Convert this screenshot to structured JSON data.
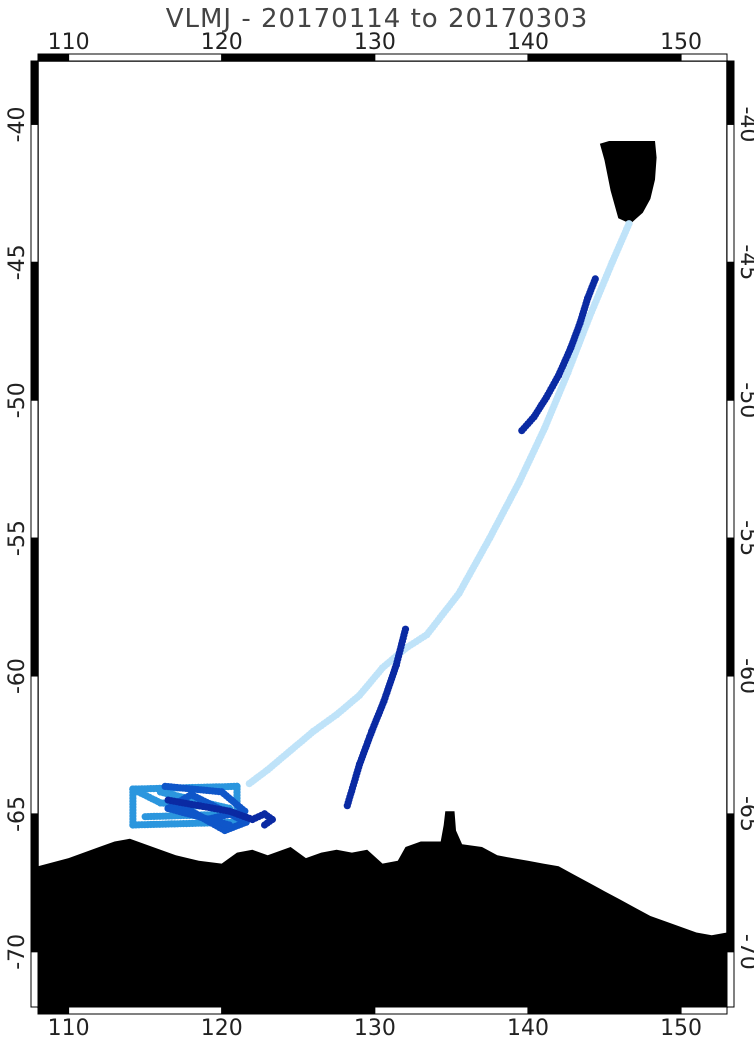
{
  "title": "VLMJ - 20170114 to 20170303",
  "map": {
    "lon_range": [
      108,
      153
    ],
    "lat_range": [
      -72,
      -37.7
    ],
    "lon_ticks": [
      110,
      120,
      130,
      140,
      150
    ],
    "lat_ticks": [
      -40,
      -45,
      -50,
      -55,
      -60,
      -65,
      -70
    ],
    "lon_tick_labels": [
      "110",
      "120",
      "130",
      "140",
      "150"
    ],
    "lat_tick_labels": [
      "-40",
      "-45",
      "-50",
      "-55",
      "-60",
      "-65",
      "-70"
    ],
    "colors": {
      "land": "#000000",
      "track_outbound": "#bfe3f9",
      "track_survey": "#2b96de",
      "track_survey_dark": "#0f56c9",
      "track_return": "#0a2aa3"
    }
  },
  "chart_data": {
    "type": "map-track",
    "series": [
      {
        "color": "#bfe3f9",
        "points": [
          [
            146.6,
            -43.6
          ],
          [
            145.5,
            -45
          ],
          [
            144,
            -47
          ],
          [
            142.6,
            -49
          ],
          [
            141.1,
            -51
          ],
          [
            139.4,
            -53
          ],
          [
            137.5,
            -55
          ],
          [
            135.5,
            -57
          ],
          [
            133.4,
            -58.5
          ],
          [
            132,
            -59
          ],
          [
            130.5,
            -59.7
          ],
          [
            129,
            -60.7
          ],
          [
            127.5,
            -61.4
          ],
          [
            126,
            -62
          ],
          [
            124.5,
            -62.7
          ],
          [
            123,
            -63.4
          ],
          [
            121.8,
            -63.9
          ]
        ]
      },
      {
        "color": "#2b96de",
        "points": [
          [
            114.2,
            -64.1
          ],
          [
            121,
            -64
          ],
          [
            121,
            -65.3
          ],
          [
            114.2,
            -65.4
          ],
          [
            114.2,
            -64.1
          ],
          [
            116,
            -64.6
          ],
          [
            120.5,
            -64.8
          ],
          [
            116,
            -64.2
          ],
          [
            121,
            -65
          ],
          [
            115,
            -65.1
          ]
        ]
      },
      {
        "color": "#0f56c9",
        "points": [
          [
            116.3,
            -64
          ],
          [
            120,
            -64.2
          ],
          [
            121.5,
            -64.9
          ],
          [
            119,
            -65.2
          ],
          [
            117,
            -64.6
          ],
          [
            120.2,
            -65.6
          ],
          [
            121.6,
            -65.3
          ],
          [
            118,
            -64.3
          ],
          [
            116.5,
            -64.8
          ],
          [
            120.5,
            -65.4
          ]
        ]
      },
      {
        "color": "#0a2aa3",
        "points": [
          [
            116.5,
            -64.5
          ],
          [
            120.5,
            -64.9
          ],
          [
            122,
            -65.2
          ],
          [
            122.8,
            -65
          ],
          [
            123.3,
            -65.2
          ],
          [
            122.8,
            -65.4
          ]
        ]
      },
      {
        "color": "#0a2aa3",
        "points": [
          [
            128.2,
            -64.7
          ],
          [
            129,
            -63.2
          ],
          [
            129.8,
            -62
          ],
          [
            130.6,
            -60.9
          ],
          [
            131.4,
            -59.6
          ],
          [
            132,
            -58.3
          ]
        ]
      },
      {
        "color": "#0a2aa3",
        "points": [
          [
            139.6,
            -51.1
          ],
          [
            140.4,
            -50.6
          ],
          [
            141.2,
            -49.9
          ],
          [
            142,
            -49.1
          ],
          [
            142.8,
            -48.1
          ],
          [
            143.4,
            -47.2
          ],
          [
            143.9,
            -46.3
          ],
          [
            144.4,
            -45.6
          ]
        ]
      }
    ],
    "land": {
      "tasmania": [
        [
          145.3,
          -40.6
        ],
        [
          148.3,
          -40.6
        ],
        [
          148.4,
          -41.2
        ],
        [
          148.3,
          -42
        ],
        [
          148,
          -42.7
        ],
        [
          147.5,
          -43.2
        ],
        [
          146.7,
          -43.6
        ],
        [
          145.9,
          -43.4
        ],
        [
          145.4,
          -42.4
        ],
        [
          145.0,
          -41.3
        ],
        [
          144.7,
          -40.7
        ]
      ],
      "antarctica": [
        [
          108,
          -66.9
        ],
        [
          110,
          -66.6
        ],
        [
          112,
          -66.2
        ],
        [
          113,
          -66.0
        ],
        [
          114,
          -65.9
        ],
        [
          115.5,
          -66.2
        ],
        [
          117,
          -66.5
        ],
        [
          118.5,
          -66.7
        ],
        [
          120,
          -66.8
        ],
        [
          121,
          -66.4
        ],
        [
          122,
          -66.3
        ],
        [
          123,
          -66.5
        ],
        [
          124.5,
          -66.2
        ],
        [
          125.5,
          -66.6
        ],
        [
          126.5,
          -66.4
        ],
        [
          127.5,
          -66.3
        ],
        [
          128.5,
          -66.4
        ],
        [
          129.5,
          -66.3
        ],
        [
          130.5,
          -66.8
        ],
        [
          131.5,
          -66.7
        ],
        [
          132,
          -66.2
        ],
        [
          133,
          -66.0
        ],
        [
          134.3,
          -66.0
        ],
        [
          134.5,
          -65.4
        ],
        [
          134.6,
          -64.9
        ],
        [
          135.2,
          -64.9
        ],
        [
          135.3,
          -65.6
        ],
        [
          135.7,
          -66.1
        ],
        [
          137,
          -66.2
        ],
        [
          138,
          -66.5
        ],
        [
          139,
          -66.6
        ],
        [
          140,
          -66.7
        ],
        [
          141,
          -66.8
        ],
        [
          142,
          -66.9
        ],
        [
          143,
          -67.2
        ],
        [
          144,
          -67.5
        ],
        [
          145,
          -67.8
        ],
        [
          146,
          -68.1
        ],
        [
          147,
          -68.4
        ],
        [
          148,
          -68.7
        ],
        [
          149,
          -68.9
        ],
        [
          150,
          -69.1
        ],
        [
          151,
          -69.3
        ],
        [
          152,
          -69.4
        ],
        [
          153,
          -69.3
        ],
        [
          153,
          -72
        ],
        [
          108,
          -72
        ]
      ]
    }
  }
}
